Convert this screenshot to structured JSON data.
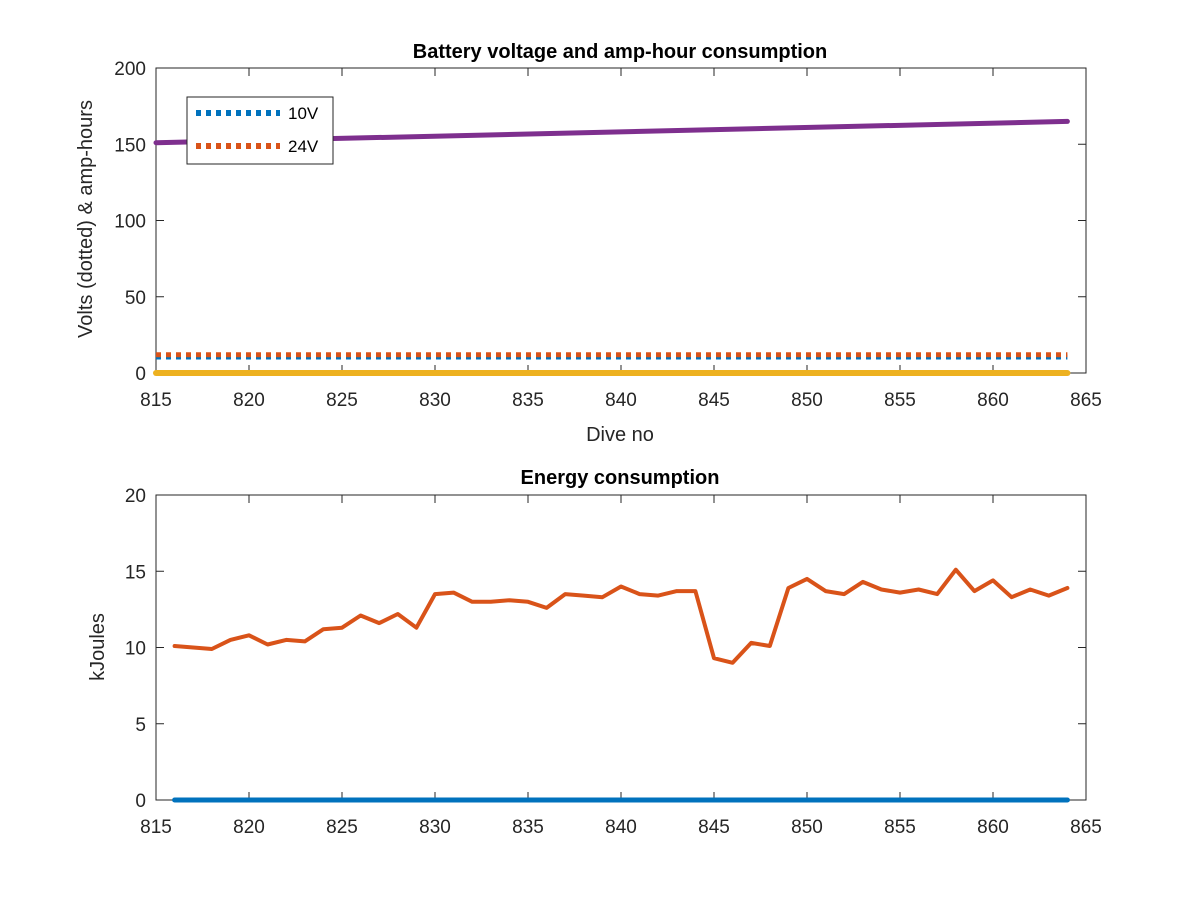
{
  "chart_data": [
    {
      "type": "line",
      "title": "Battery voltage and amp-hour consumption",
      "xlabel": "Dive no",
      "ylabel": "Volts (dotted) & amp-hours",
      "xlim": [
        815,
        865
      ],
      "ylim": [
        0,
        200
      ],
      "xticks": [
        "815",
        "820",
        "825",
        "830",
        "835",
        "840",
        "845",
        "850",
        "855",
        "860",
        "865"
      ],
      "yticks": [
        "0",
        "50",
        "100",
        "150",
        "200"
      ],
      "grid": false,
      "legend": {
        "placement": "top-left",
        "entries": [
          "10V",
          "24V"
        ]
      },
      "series": [
        {
          "name": "10V",
          "style": "dotted",
          "color": "#0072BD",
          "x": [
            815,
            864
          ],
          "values": [
            10.5,
            10.5
          ]
        },
        {
          "name": "24V",
          "style": "dotted",
          "color": "#D95319",
          "x": [
            815,
            864
          ],
          "values": [
            12,
            12
          ]
        },
        {
          "style": "solid",
          "color": "#7E2F8E",
          "x": [
            815,
            864
          ],
          "values": [
            151,
            165
          ]
        },
        {
          "style": "solid",
          "color": "#EDB120",
          "x": [
            815,
            864
          ],
          "values": [
            0,
            0
          ]
        }
      ]
    },
    {
      "type": "line",
      "title": "Energy consumption",
      "xlabel": "",
      "ylabel": "kJoules",
      "xlim": [
        815,
        865
      ],
      "ylim": [
        0,
        20
      ],
      "xticks": [
        "815",
        "820",
        "825",
        "830",
        "835",
        "840",
        "845",
        "850",
        "855",
        "860",
        "865"
      ],
      "yticks": [
        "0",
        "5",
        "10",
        "15",
        "20"
      ],
      "grid": false,
      "series": [
        {
          "style": "solid",
          "color": "#0072BD",
          "x": [
            816,
            864
          ],
          "values": [
            0,
            0
          ]
        },
        {
          "style": "solid",
          "color": "#D95319",
          "x": [
            816,
            817,
            818,
            819,
            820,
            821,
            822,
            823,
            824,
            825,
            826,
            827,
            828,
            829,
            830,
            831,
            832,
            833,
            834,
            835,
            836,
            837,
            838,
            839,
            840,
            841,
            842,
            843,
            844,
            845,
            846,
            847,
            848,
            849,
            850,
            851,
            852,
            853,
            854,
            855,
            856,
            857,
            858,
            859,
            860,
            861,
            862,
            863,
            864
          ],
          "values": [
            10.1,
            10.0,
            9.9,
            10.5,
            10.8,
            10.2,
            10.5,
            10.4,
            11.2,
            11.3,
            12.1,
            11.6,
            12.2,
            11.3,
            13.5,
            13.6,
            13.0,
            13.0,
            13.1,
            13.0,
            12.6,
            13.5,
            13.4,
            13.3,
            14.0,
            13.5,
            13.4,
            13.7,
            13.7,
            9.3,
            9.0,
            10.3,
            10.1,
            13.9,
            14.5,
            13.7,
            13.5,
            14.3,
            13.8,
            13.6,
            13.8,
            13.5,
            15.1,
            13.7,
            14.4,
            13.3,
            13.8,
            13.4,
            13.9
          ]
        }
      ]
    }
  ]
}
